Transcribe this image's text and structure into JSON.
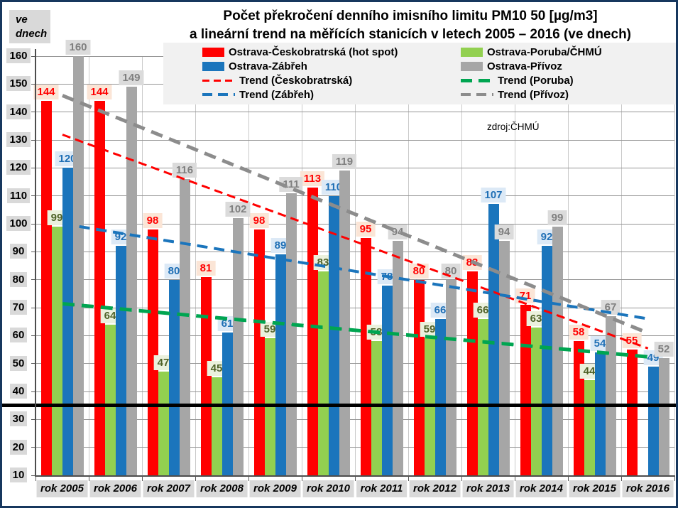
{
  "header": {
    "title_line1": "Počet překročení denního imisního limitu PM10 50 [µg/m3]",
    "title_line2": "a lineární trend na měřících stanicích v letech 2005 – 2016 (ve dnech)",
    "unit_line1": "ve",
    "unit_line2": "dnech",
    "source": "zdroj:ČHMÚ"
  },
  "chart_data": {
    "type": "bar",
    "title": "Počet překročení denního imisního limitu PM10 50 [µg/m3] a lineární trend na měřících stanicích v letech 2005 – 2016 (ve dnech)",
    "ylabel": "ve dnech",
    "grid": "on",
    "legend_position": "top",
    "y_axis": {
      "min": 10,
      "max": 160,
      "step": 10
    },
    "y_ticks": [
      160,
      150,
      140,
      130,
      120,
      110,
      100,
      90,
      80,
      70,
      60,
      50,
      40,
      30,
      20,
      10
    ],
    "categories": [
      "rok 2005",
      "rok 2006",
      "rok 2007",
      "rok 2008",
      "rok 2009",
      "rok 2010",
      "rok 2011",
      "rok 2012",
      "rok 2013",
      "rok 2014",
      "rok 2015",
      "rok 2016"
    ],
    "series": [
      {
        "name": "Ostrava-Českobratrská (hot spot)",
        "color": "#FF0000",
        "label_bg": "#FBE5D6",
        "label_color": "#FF0000",
        "values": [
          144,
          144,
          98,
          81,
          98,
          113,
          95,
          80,
          83,
          71,
          58,
          55
        ]
      },
      {
        "name": "Ostrava-Poruba/ČHMÚ",
        "color": "#92D050",
        "label_bg": "#EBF1DD",
        "label_color": "#4F6228",
        "values": [
          99,
          64,
          47,
          45,
          59,
          83,
          58,
          59,
          66,
          63,
          44,
          null
        ]
      },
      {
        "name": "Ostrava-Zábřeh",
        "color": "#1B75BC",
        "label_bg": "#DCE9F6",
        "label_color": "#1F6FB5",
        "values": [
          120,
          92,
          80,
          61,
          89,
          110,
          78,
          66,
          107,
          92,
          54,
          49
        ]
      },
      {
        "name": "Ostrava-Přívoz",
        "color": "#A6A6A6",
        "label_bg": "#DBDBDB",
        "label_color": "#7F7F7F",
        "values": [
          160,
          149,
          116,
          102,
          111,
          119,
          94,
          80,
          94,
          99,
          67,
          52
        ]
      }
    ],
    "trends": [
      {
        "name": "Trend (Českobratrská)",
        "color": "#FF0000",
        "start": 132,
        "end": 55.5,
        "thickness": 2.5,
        "dash": [
          12,
          7
        ]
      },
      {
        "name": "Trend (Poruba)",
        "color": "#00A551",
        "start": 71.5,
        "end": 52.5,
        "thickness": 5,
        "dash": [
          17,
          10
        ]
      },
      {
        "name": "Trend (Zábřeh)",
        "color": "#1B75BC",
        "start": 100,
        "end": 66,
        "thickness": 4,
        "dash": [
          15,
          9
        ]
      },
      {
        "name": "Trend (Přívoz)",
        "color": "#8C8C8C",
        "start": 146,
        "end": 61,
        "thickness": 4.5,
        "dash": [
          17,
          10
        ]
      }
    ],
    "limit_line": {
      "value": 35,
      "color": "#000000"
    },
    "legend_columns": [
      [
        {
          "label": "Ostrava-Českobratrská (hot spot)",
          "swatch": "bar",
          "color": "#FF0000"
        },
        {
          "label": "Ostrava-Zábřeh",
          "swatch": "bar",
          "color": "#1B75BC"
        },
        {
          "label": "Trend (Českobratrská)",
          "swatch": "dash",
          "color": "#FF0000",
          "thickness": 3,
          "dash": [
            10,
            6
          ]
        },
        {
          "label": "Trend (Zábřeh)",
          "swatch": "dash",
          "color": "#1B75BC",
          "thickness": 4,
          "dash": [
            14,
            8
          ]
        }
      ],
      [
        {
          "label": "Ostrava-Poruba/ČHMÚ",
          "swatch": "bar",
          "color": "#92D050"
        },
        {
          "label": "Ostrava-Přívoz",
          "swatch": "bar",
          "color": "#A6A6A6"
        },
        {
          "label": "Trend (Poruba)",
          "swatch": "dash",
          "color": "#00A551",
          "thickness": 5,
          "dash": [
            16,
            9
          ]
        },
        {
          "label": "Trend (Přívoz)",
          "swatch": "dash",
          "color": "#8C8C8C",
          "thickness": 4,
          "dash": [
            14,
            8
          ]
        }
      ]
    ]
  }
}
